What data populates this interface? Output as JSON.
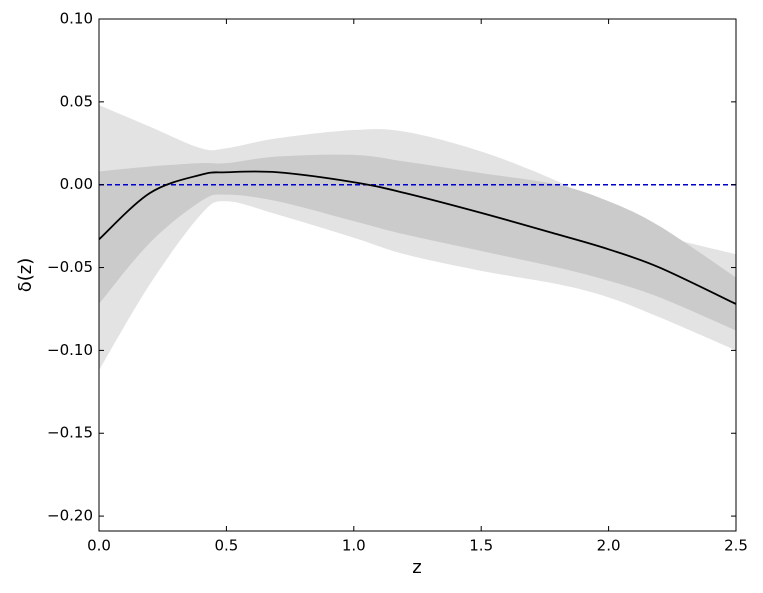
{
  "chart_data": {
    "type": "line",
    "x_label": "z",
    "y_label": "δ(z)",
    "x": [
      0,
      0.2,
      0.4,
      0.5,
      0.7,
      1.0,
      1.2,
      1.5,
      1.8,
      2.0,
      2.2,
      2.5
    ],
    "series": [
      {
        "color": "#000000",
        "values": [
          -0.033,
          -0.005,
          0.006,
          0.0075,
          0.0075,
          0.0015,
          -0.005,
          -0.017,
          -0.03,
          -0.039,
          -0.05,
          -0.072
        ]
      }
    ],
    "bands": [
      {
        "color": "#e3e3e3",
        "upper": [
          0.048,
          0.035,
          0.022,
          0.022,
          0.028,
          0.033,
          0.032,
          0.02,
          0.002,
          -0.015,
          -0.03,
          -0.042
        ],
        "lower": [
          -0.112,
          -0.06,
          -0.018,
          -0.01,
          -0.018,
          -0.032,
          -0.042,
          -0.052,
          -0.06,
          -0.068,
          -0.08,
          -0.1
        ]
      },
      {
        "color": "#cbcbcb",
        "upper": [
          0.008,
          0.011,
          0.013,
          0.013,
          0.017,
          0.018,
          0.014,
          0.007,
          0.0,
          -0.01,
          -0.025,
          -0.056
        ],
        "lower": [
          -0.072,
          -0.035,
          -0.01,
          -0.006,
          -0.01,
          -0.022,
          -0.03,
          -0.04,
          -0.05,
          -0.058,
          -0.068,
          -0.088
        ]
      }
    ],
    "hline": {
      "value": 0,
      "color": "#0000cc"
    },
    "xlim": [
      0,
      2.5
    ],
    "ylim": [
      -0.209,
      0.1
    ],
    "xticks": [
      {
        "value": 0,
        "label": "0.0"
      },
      0.5,
      {
        "value": 1,
        "label": "1.0"
      },
      1.5,
      {
        "value": 2,
        "label": "2.0"
      },
      2.5
    ],
    "yticks": [
      {
        "value": 0.1,
        "label": "0.10"
      },
      {
        "value": 0.05,
        "label": "0.05"
      },
      {
        "value": 0,
        "label": "0.00"
      },
      {
        "value": -0.05,
        "label": "−0.05"
      },
      {
        "value": -0.1,
        "label": "−0.10"
      },
      {
        "value": -0.15,
        "label": "−0.15"
      },
      {
        "value": -0.2,
        "label": "−0.20"
      }
    ],
    "grid": false
  }
}
